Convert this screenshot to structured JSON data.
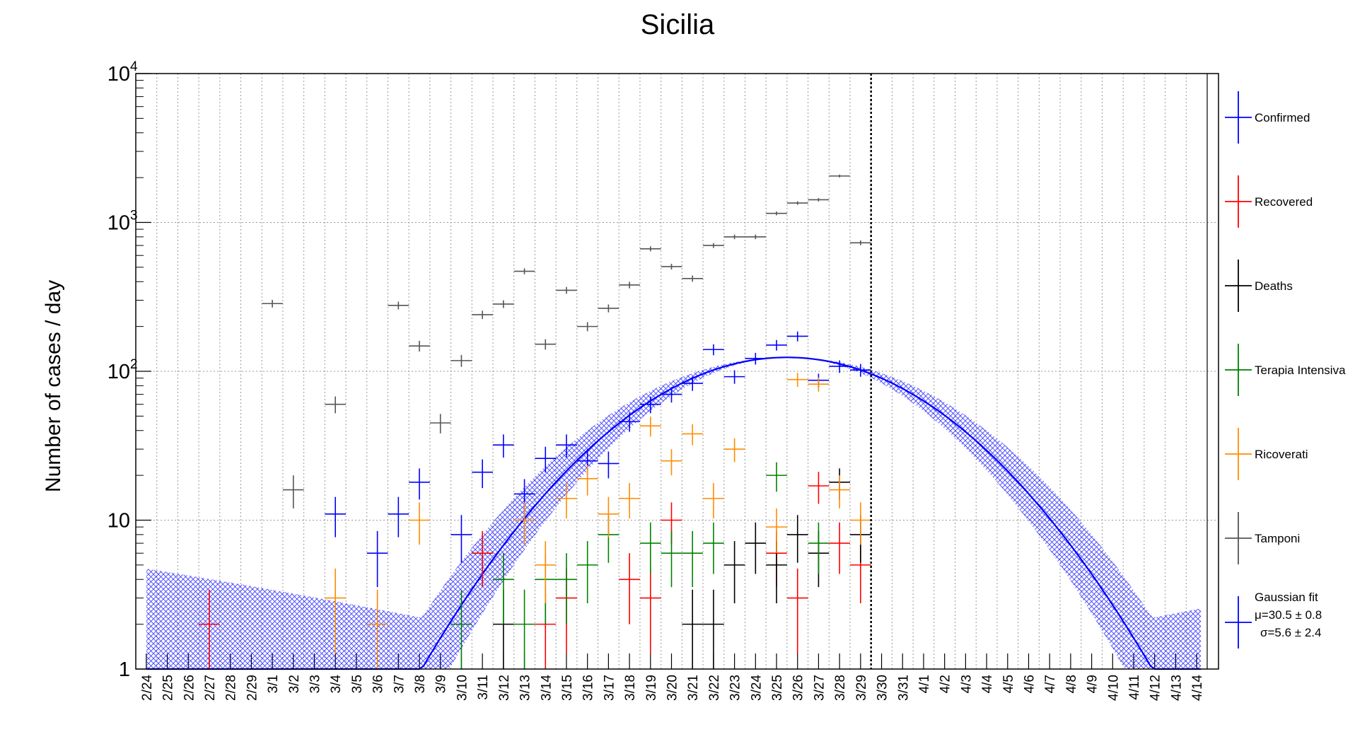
{
  "chart_data": {
    "type": "scatter",
    "title": "Sicilia",
    "ylabel": "Number of cases / day",
    "xlabel": "",
    "yscale": "log",
    "ylim": [
      1,
      10000
    ],
    "ytick_labels": [
      "1",
      "10",
      "10",
      "10",
      "10"
    ],
    "ytick_exponents": [
      "",
      "",
      "2",
      "3",
      "4"
    ],
    "grid": true,
    "legend_position": "right",
    "categories": [
      "2/24",
      "2/25",
      "2/26",
      "2/27",
      "2/28",
      "2/29",
      "3/1",
      "3/2",
      "3/3",
      "3/4",
      "3/5",
      "3/6",
      "3/7",
      "3/8",
      "3/9",
      "3/10",
      "3/11",
      "3/12",
      "3/13",
      "3/14",
      "3/15",
      "3/16",
      "3/17",
      "3/18",
      "3/19",
      "3/20",
      "3/21",
      "3/22",
      "3/23",
      "3/24",
      "3/25",
      "3/26",
      "3/27",
      "3/28",
      "3/29",
      "3/30",
      "3/31",
      "4/1",
      "4/2",
      "4/3",
      "4/4",
      "4/5",
      "4/6",
      "4/7",
      "4/8",
      "4/9",
      "4/10",
      "4/11",
      "4/12",
      "4/13",
      "4/14"
    ],
    "last_data_date": "3/29",
    "series": [
      {
        "name": "Confirmed",
        "color": "#0000ff",
        "values": [
          null,
          null,
          null,
          null,
          null,
          null,
          null,
          null,
          null,
          11,
          null,
          6,
          11,
          18,
          null,
          8,
          21,
          32,
          15,
          26,
          32,
          25,
          24,
          46,
          60,
          70,
          83,
          140,
          92,
          122,
          150,
          172,
          87,
          108,
          102
        ]
      },
      {
        "name": "Recovered",
        "color": "#ff0000",
        "values": [
          null,
          null,
          null,
          2,
          null,
          null,
          null,
          null,
          null,
          null,
          null,
          null,
          null,
          null,
          null,
          null,
          6,
          null,
          null,
          2,
          3,
          null,
          null,
          4,
          3,
          10,
          null,
          null,
          null,
          null,
          6,
          3,
          17,
          7,
          5
        ]
      },
      {
        "name": "Deaths",
        "color": "#000000",
        "values": [
          null,
          null,
          null,
          null,
          null,
          null,
          null,
          null,
          null,
          null,
          null,
          null,
          null,
          null,
          null,
          null,
          null,
          2,
          null,
          null,
          null,
          null,
          null,
          null,
          null,
          null,
          2,
          2,
          5,
          7,
          5,
          8,
          6,
          18,
          8
        ]
      },
      {
        "name": "Terapia Intensiva",
        "color": "#008000",
        "values": [
          null,
          null,
          null,
          null,
          null,
          null,
          null,
          null,
          null,
          null,
          null,
          null,
          null,
          null,
          null,
          2,
          null,
          4,
          2,
          4,
          4,
          5,
          8,
          null,
          7,
          6,
          6,
          7,
          null,
          null,
          20,
          null,
          7,
          null,
          null
        ]
      },
      {
        "name": "Ricoverati",
        "color": "#ff8c00",
        "values": [
          null,
          null,
          null,
          null,
          null,
          null,
          null,
          null,
          null,
          3,
          null,
          2,
          null,
          10,
          null,
          null,
          null,
          null,
          10,
          5,
          14,
          19,
          11,
          14,
          43,
          25,
          38,
          14,
          30,
          null,
          9,
          88,
          82,
          16,
          10
        ]
      },
      {
        "name": "Tamponi",
        "color": "#555555",
        "values": [
          null,
          null,
          null,
          null,
          null,
          null,
          285,
          16,
          null,
          60,
          null,
          null,
          277,
          148,
          45,
          118,
          240,
          283,
          470,
          152,
          350,
          200,
          265,
          380,
          665,
          505,
          420,
          700,
          800,
          800,
          1150,
          1350,
          1420,
          2050,
          730
        ]
      }
    ],
    "fit": {
      "name": "Gaussian fit",
      "label_mu": "μ=30.5 ± 0.8",
      "label_sigma": "σ=5.6 ± 2.4",
      "color": "#0000ff",
      "mu": 30.5,
      "sigma": 5.6,
      "amplitude": 124
    }
  }
}
